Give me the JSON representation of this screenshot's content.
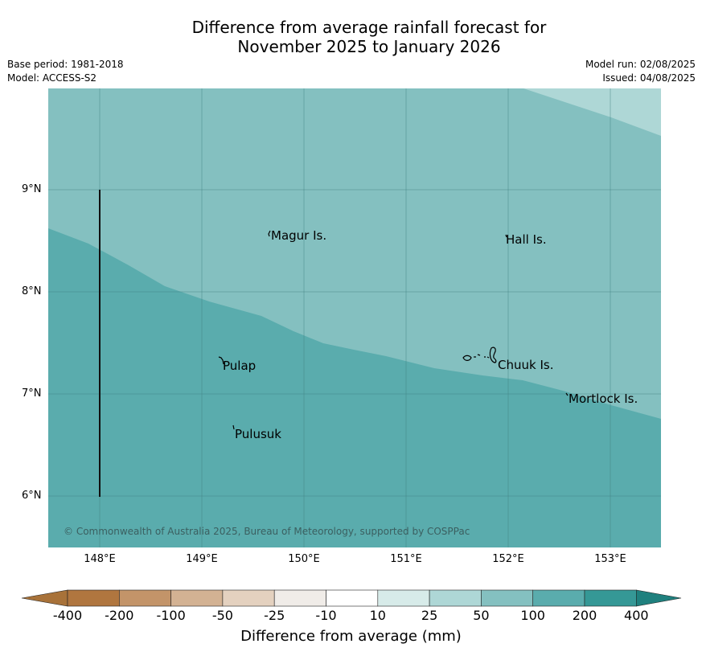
{
  "title_line1": "Difference from average rainfall forecast for",
  "title_line2": "November 2025 to January 2026",
  "base_period": "Base period: 1981-2018",
  "model": "Model: ACCESS-S2",
  "model_run": "Model run: 02/08/2025",
  "issued": "Issued: 04/08/2025",
  "latitude_labels": [
    "9°N",
    "8°N",
    "7°N",
    "6°N"
  ],
  "longitude_labels": [
    "148°E",
    "149°E",
    "150°E",
    "151°E",
    "152°E",
    "153°E"
  ],
  "places": {
    "magur": "Magur Is.",
    "hall": "Hall Is.",
    "pulap": "Pulap",
    "chuuk": "Chuuk Is.",
    "mortlock": "Mortlock Is.",
    "pulusuk": "Pulusuk"
  },
  "copyright": "© Commonwealth of Australia 2025, Bureau of Meteorology, supported by COSPPac",
  "colorbar": {
    "title": "Difference from average (mm)",
    "ticks": [
      "-400",
      "-200",
      "-100",
      "-50",
      "-25",
      "-10",
      "10",
      "25",
      "50",
      "100",
      "200",
      "400"
    ],
    "colors": [
      "#a87239",
      "#b0763f",
      "#c39469",
      "#d3b293",
      "#e4d1bf",
      "#f0ece8",
      "#ffffff",
      "#d7ebe9",
      "#aed7d6",
      "#84c0c0",
      "#5aacad",
      "#359896",
      "#1f807e"
    ]
  },
  "map_colors": {
    "band_25_50": "#aed7d6",
    "band_50_100": "#84c0c0",
    "band_100_200": "#5aacad"
  }
}
